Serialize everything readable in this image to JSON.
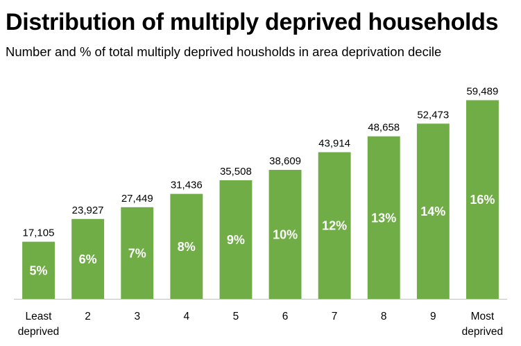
{
  "chart_data": {
    "type": "bar",
    "title": "Distribution of multiply deprived households",
    "subtitle": "Number and % of total multiply deprived housholds in area deprivation decile",
    "xlabel": "",
    "ylabel": "",
    "categories": [
      [
        "Least",
        "deprived"
      ],
      [
        "2"
      ],
      [
        "3"
      ],
      [
        "4"
      ],
      [
        "5"
      ],
      [
        "6"
      ],
      [
        "7"
      ],
      [
        "8"
      ],
      [
        "9"
      ],
      [
        "Most",
        "deprived"
      ]
    ],
    "values": [
      17105,
      23927,
      27449,
      31436,
      35508,
      38609,
      43914,
      48658,
      52473,
      59489
    ],
    "value_labels": [
      "17,105",
      "23,927",
      "27,449",
      "31,436",
      "35,508",
      "38,609",
      "43,914",
      "48,658",
      "52,473",
      "59,489"
    ],
    "percent_labels": [
      "5%",
      "6%",
      "7%",
      "8%",
      "9%",
      "10%",
      "12%",
      "13%",
      "14%",
      "16%"
    ],
    "ylim": [
      0,
      60000
    ],
    "grid": false,
    "legend": "none",
    "bar_color": "#70AD47",
    "axis_color": "#BFBFBF"
  }
}
